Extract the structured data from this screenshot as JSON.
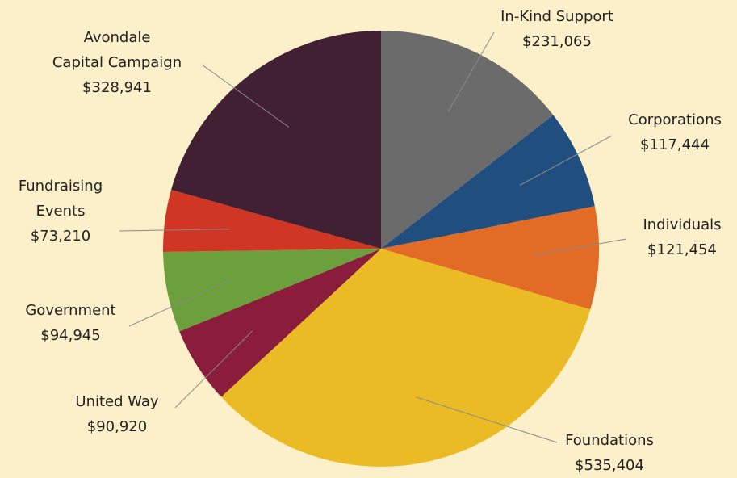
{
  "chart_data": {
    "type": "pie",
    "slices": [
      {
        "label": "In-Kind Support",
        "value_label": "$231,065",
        "value": 231065,
        "color": "#6b6b6c"
      },
      {
        "label": "Corporations",
        "value_label": "$117,444",
        "value": 117444,
        "color": "#1f4e7f"
      },
      {
        "label": "Individuals",
        "value_label": "$121,454",
        "value": 121454,
        "color": "#e26b25"
      },
      {
        "label": "Foundations",
        "value_label": "$535,404",
        "value": 535404,
        "color": "#ebbb25"
      },
      {
        "label": "United Way",
        "value_label": "$90,920",
        "value": 90920,
        "color": "#8a1c3c"
      },
      {
        "label": "Government",
        "value_label": "$94,945",
        "value": 94945,
        "color": "#6ca03c"
      },
      {
        "label": "Fundraising Events",
        "value_label": "$73,210",
        "value": 73210,
        "color": "#cf3724"
      },
      {
        "label": "Avondale Capital Campaign",
        "value_label": "$328,941",
        "value": 328941,
        "color": "#412033"
      }
    ]
  },
  "labels": {
    "in_kind": {
      "line1": "In-Kind Support",
      "line2": "$231,065"
    },
    "corporations": {
      "line1": "Corporations",
      "line2": "$117,444"
    },
    "individuals": {
      "line1": "Individuals",
      "line2": "$121,454"
    },
    "foundations": {
      "line1": "Foundations",
      "line2": "$535,404"
    },
    "united_way": {
      "line1": "United Way",
      "line2": "$90,920"
    },
    "government": {
      "line1": "Government",
      "line2": "$94,945"
    },
    "fundraising": {
      "line1": "Fundraising",
      "line2": "Events",
      "line3": "$73,210"
    },
    "avondale": {
      "line1": "Avondale",
      "line2": "Capital Campaign",
      "line3": "$328,941"
    }
  }
}
